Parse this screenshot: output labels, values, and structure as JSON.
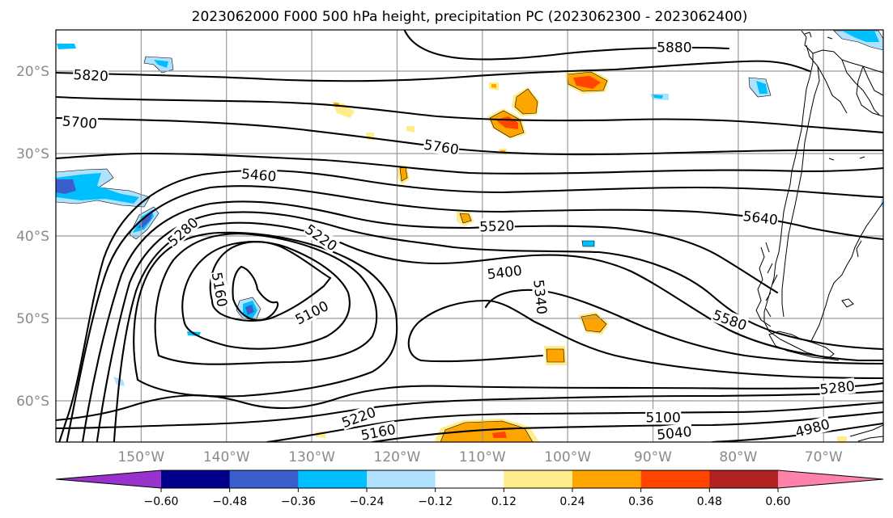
{
  "title": "2023062000 F000 500 hPa height, precipitation PC (2023062300 - 2023062400)",
  "map": {
    "lon_range": [
      -160,
      -63
    ],
    "lat_range": [
      -65,
      -15
    ],
    "lon_ticks": [
      {
        "lon": -150,
        "label": "150°W"
      },
      {
        "lon": -140,
        "label": "140°W"
      },
      {
        "lon": -130,
        "label": "130°W"
      },
      {
        "lon": -120,
        "label": "120°W"
      },
      {
        "lon": -110,
        "label": "110°W"
      },
      {
        "lon": -100,
        "label": "100°W"
      },
      {
        "lon": -90,
        "label": "90°W"
      },
      {
        "lon": -80,
        "label": "80°W"
      },
      {
        "lon": -70,
        "label": "70°W"
      }
    ],
    "lat_ticks": [
      {
        "lat": -20,
        "label": "20°S"
      },
      {
        "lat": -30,
        "label": "30°S"
      },
      {
        "lat": -40,
        "label": "40°S"
      },
      {
        "lat": -50,
        "label": "50°S"
      },
      {
        "lat": -60,
        "label": "60°S"
      }
    ],
    "grid": true
  },
  "contour_labels": [
    {
      "text": "5880",
      "lon": -87.5,
      "lat": -17.1,
      "angle": 0
    },
    {
      "text": "5820",
      "lon": -155.9,
      "lat": -20.5,
      "angle": 3
    },
    {
      "text": "5700",
      "lon": -157.2,
      "lat": -26.2,
      "angle": 5
    },
    {
      "text": "5760",
      "lon": -114.8,
      "lat": -29.2,
      "angle": 9
    },
    {
      "text": "5460",
      "lon": -136.2,
      "lat": -32.6,
      "angle": 5
    },
    {
      "text": "5640",
      "lon": -77.4,
      "lat": -37.8,
      "angle": 7
    },
    {
      "text": "5520",
      "lon": -108.3,
      "lat": -38.8,
      "angle": -2
    },
    {
      "text": "5280",
      "lon": -145.1,
      "lat": -39.5,
      "angle": -42
    },
    {
      "text": "5220",
      "lon": -128.9,
      "lat": -40.2,
      "angle": 35
    },
    {
      "text": "5400",
      "lon": -107.4,
      "lat": -44.4,
      "angle": -7
    },
    {
      "text": "5340",
      "lon": -103.2,
      "lat": -47.4,
      "angle": 84
    },
    {
      "text": "5160",
      "lon": -140.8,
      "lat": -46.5,
      "angle": 80
    },
    {
      "text": "5100",
      "lon": -130.0,
      "lat": -49.3,
      "angle": -27
    },
    {
      "text": "5580",
      "lon": -81.0,
      "lat": -50.2,
      "angle": 20
    },
    {
      "text": "5280",
      "lon": -68.4,
      "lat": -58.4,
      "angle": -6
    },
    {
      "text": "5220",
      "lon": -124.5,
      "lat": -62.0,
      "angle": -20
    },
    {
      "text": "5160",
      "lon": -122.2,
      "lat": -63.8,
      "angle": -11
    },
    {
      "text": "5100",
      "lon": -88.8,
      "lat": -62.0,
      "angle": 0
    },
    {
      "text": "5040",
      "lon": -87.5,
      "lat": -63.9,
      "angle": -6
    },
    {
      "text": "4980",
      "lon": -71.3,
      "lat": -63.3,
      "angle": -15
    }
  ],
  "colorbar": {
    "ticks": [
      "−0.60",
      "−0.48",
      "−0.36",
      "−0.24",
      "−0.12",
      "0.12",
      "0.24",
      "0.36",
      "0.48",
      "0.60"
    ],
    "colors": [
      "#9932cc",
      "#00008b",
      "#3a5fcd",
      "#00bfff",
      "#b0e2ff",
      "#ffffff",
      "#ffec8b",
      "#ffa500",
      "#ff4500",
      "#b22222",
      "#ff82ab"
    ],
    "extend": "both"
  },
  "precip_colors": {
    "light_blue": "#b0e2ff",
    "sky_blue": "#00bfff",
    "royal_blue": "#3a5fcd",
    "light_yellow": "#ffec8b",
    "orange": "#ffa500",
    "red_orange": "#ff4500",
    "firebrick": "#b22222"
  }
}
